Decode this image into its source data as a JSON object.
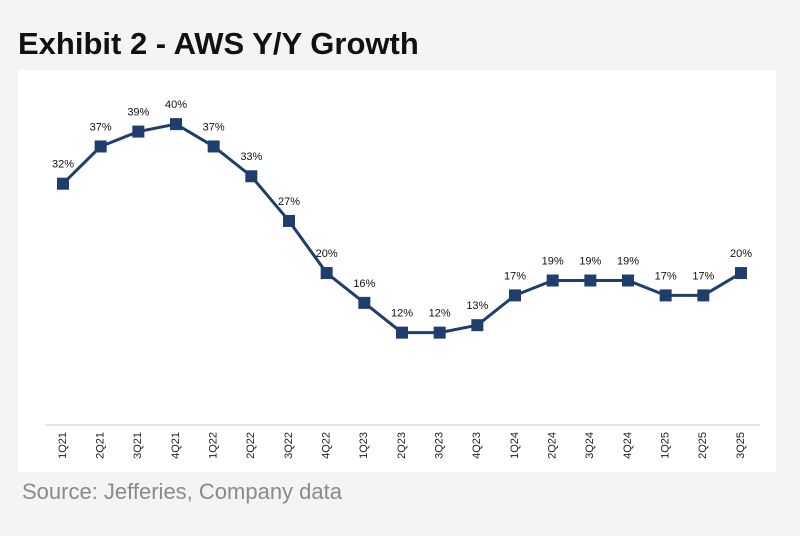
{
  "chart_data": {
    "type": "line",
    "title": "Exhibit 2 - AWS Y/Y Growth",
    "source": "Source: Jefferies, Company data",
    "categories": [
      "1Q21",
      "2Q21",
      "3Q21",
      "4Q21",
      "1Q22",
      "2Q22",
      "3Q22",
      "4Q22",
      "1Q23",
      "2Q23",
      "3Q23",
      "4Q23",
      "1Q24",
      "2Q24",
      "3Q24",
      "4Q24",
      "1Q25",
      "2Q25",
      "3Q25"
    ],
    "values": [
      32,
      37,
      39,
      40,
      37,
      33,
      27,
      20,
      16,
      12,
      12,
      13,
      17,
      19,
      19,
      19,
      17,
      17,
      20
    ],
    "value_labels": [
      "32%",
      "37%",
      "39%",
      "40%",
      "37%",
      "33%",
      "27%",
      "20%",
      "16%",
      "12%",
      "12%",
      "13%",
      "17%",
      "19%",
      "19%",
      "19%",
      "17%",
      "17%",
      "20%"
    ],
    "color": "#1f3d6d",
    "ylim": [
      0,
      47
    ]
  }
}
